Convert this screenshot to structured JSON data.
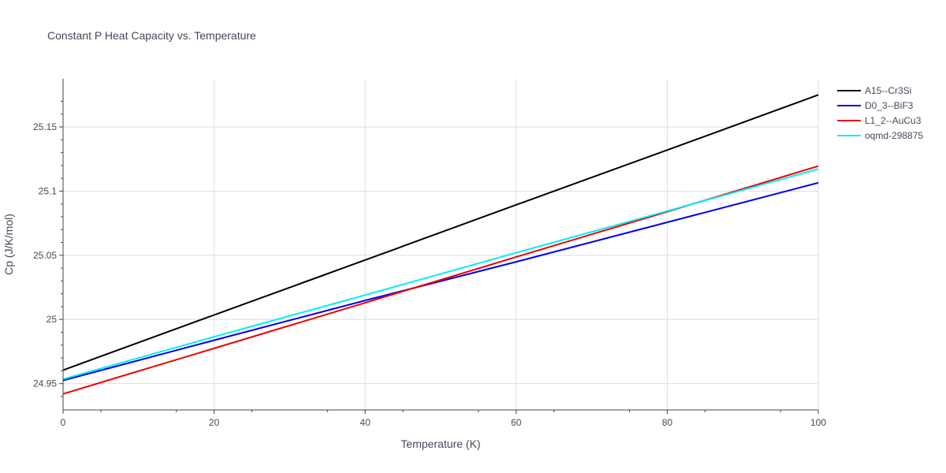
{
  "chart_data": {
    "type": "line",
    "title": "Constant P Heat Capacity vs. Temperature",
    "xlabel": "Temperature (K)",
    "ylabel": "Cp (J/K/mol)",
    "xlim": [
      0,
      100
    ],
    "ylim": [
      24.9295,
      25.1875
    ],
    "x_ticks": [
      0,
      20,
      40,
      60,
      80,
      100
    ],
    "x_tick_labels": [
      "0",
      "20",
      "40",
      "60",
      "80",
      "100"
    ],
    "y_ticks": [
      24.95,
      25.0,
      25.05,
      25.1,
      25.15
    ],
    "y_tick_labels": [
      "24.95",
      "25",
      "25.05",
      "25.1",
      "25.15"
    ],
    "grid": true,
    "legend_position": "top-right",
    "series": [
      {
        "name": "A15--Cr3Si",
        "color": "#000000",
        "x": [
          0,
          20,
          40,
          60,
          80,
          100
        ],
        "y": [
          24.9605,
          25.0035,
          25.0463,
          25.0893,
          25.132,
          25.175
        ]
      },
      {
        "name": "D0_3--BiF3",
        "color": "#0000ee",
        "x": [
          0,
          20,
          40,
          60,
          80,
          100
        ],
        "y": [
          24.9525,
          24.9838,
          25.0148,
          25.0449,
          25.0757,
          25.1065
        ]
      },
      {
        "name": "L1_2--AuCu3",
        "color": "#ee0000",
        "x": [
          0,
          20,
          40,
          60,
          80,
          100
        ],
        "y": [
          24.942,
          24.9775,
          25.013,
          25.0487,
          25.084,
          25.1195
        ]
      },
      {
        "name": "oqmd-298875",
        "color": "#00eeee",
        "x": [
          0,
          20,
          40,
          60,
          80,
          100
        ],
        "y": [
          24.9535,
          24.9865,
          25.019,
          25.052,
          25.0845,
          25.1172
        ]
      }
    ]
  }
}
